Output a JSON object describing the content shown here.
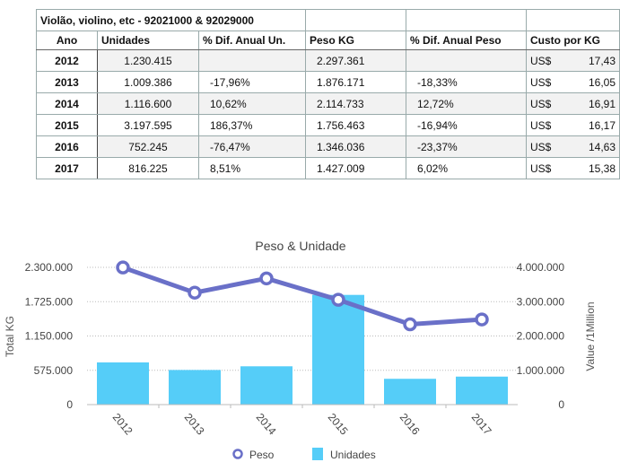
{
  "table": {
    "title": "Violão, violino, etc - 92021000 & 92029000",
    "headers": [
      "Ano",
      "Unidades",
      "% Dif. Anual Un.",
      "Peso KG",
      "% Dif. Anual Peso",
      "Custo por KG"
    ],
    "rows": [
      [
        "2012",
        "1.230.415",
        "",
        "2.297.361",
        "",
        "US$",
        "17,43"
      ],
      [
        "2013",
        "1.009.386",
        "-17,96%",
        "1.876.171",
        "-18,33%",
        "US$",
        "16,05"
      ],
      [
        "2014",
        "1.116.600",
        "10,62%",
        "2.114.733",
        "12,72%",
        "US$",
        "16,91"
      ],
      [
        "2015",
        "3.197.595",
        "186,37%",
        "1.756.463",
        "-16,94%",
        "US$",
        "16,17"
      ],
      [
        "2016",
        "752.245",
        "-76,47%",
        "1.346.036",
        "-23,37%",
        "US$",
        "14,63"
      ],
      [
        "2017",
        "816.225",
        "8,51%",
        "1.427.009",
        "6,02%",
        "US$",
        "15,38"
      ]
    ]
  },
  "chart_data": {
    "type": "bar+line",
    "title": "Peso & Unidade",
    "categories": [
      "2012",
      "2013",
      "2014",
      "2015",
      "2016",
      "2017"
    ],
    "ylabel_left": "Total KG",
    "ylabel_right": "Value /1Million",
    "yticks_left": [
      "0",
      "575.000",
      "1.150.000",
      "1.725.000",
      "2.300.000"
    ],
    "yticks_right": [
      "0",
      "1.000.000",
      "2.000.000",
      "3.000.000",
      "4.000.000"
    ],
    "ylim_left": [
      0,
      2300000
    ],
    "ylim_right": [
      0,
      4000000
    ],
    "grid": true,
    "legend": "bottom",
    "series": [
      {
        "name": "Peso",
        "type": "line",
        "axis": "left",
        "color": "#6a70c8",
        "values": [
          2297361,
          1876171,
          2114733,
          1756463,
          1346036,
          1427009
        ]
      },
      {
        "name": "Unidades",
        "type": "bar",
        "axis": "right",
        "color": "#55cdf8",
        "values": [
          1230415,
          1009386,
          1116600,
          3197595,
          752245,
          816225
        ]
      }
    ]
  }
}
